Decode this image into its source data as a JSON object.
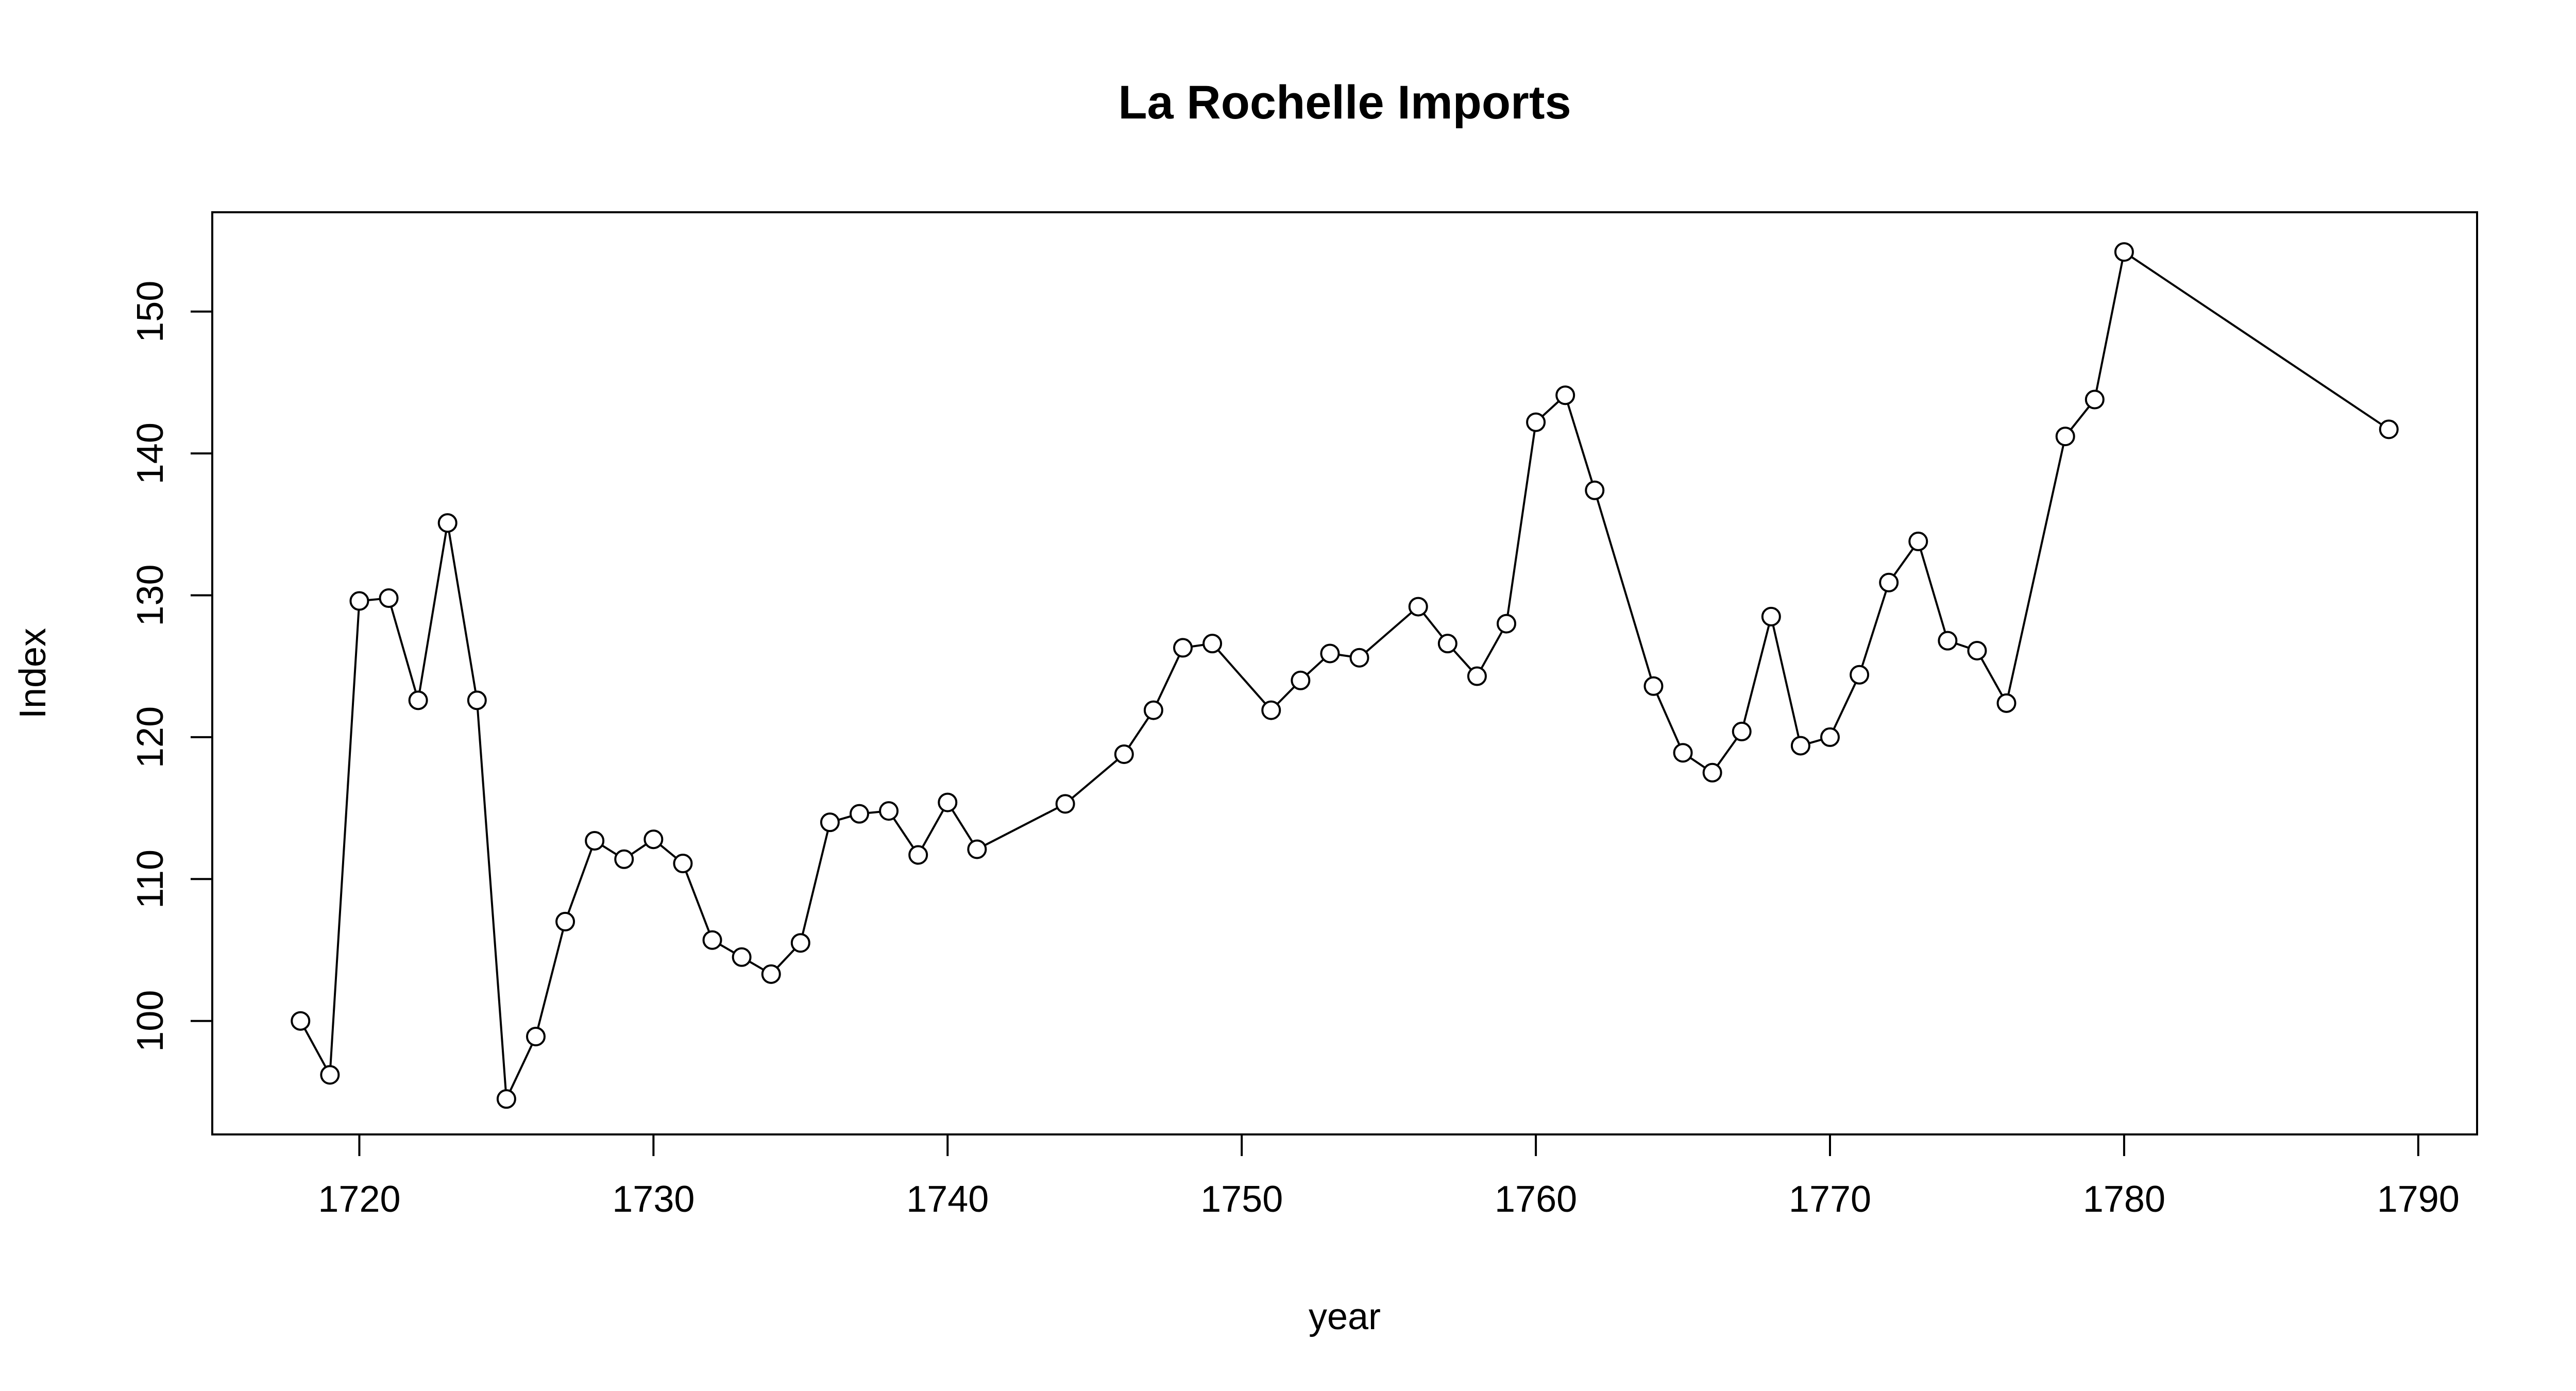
{
  "chart_data": {
    "type": "line",
    "title": "La Rochelle Imports",
    "xlabel": "year",
    "ylabel": "Index",
    "xlim": [
      1715,
      1792
    ],
    "ylim": [
      92,
      157
    ],
    "x_ticks": [
      1720,
      1730,
      1740,
      1750,
      1760,
      1770,
      1780,
      1790
    ],
    "y_ticks": [
      100,
      110,
      120,
      130,
      140,
      150
    ],
    "grid": false,
    "legend": "none",
    "marker": "open-circle",
    "color": "#000000",
    "series": [
      {
        "x": [
          1718,
          1719,
          1720,
          1721,
          1722,
          1723,
          1724,
          1725,
          1726,
          1727,
          1728,
          1729,
          1730,
          1731,
          1732,
          1733,
          1734,
          1735,
          1736,
          1737,
          1738,
          1739,
          1740,
          1741,
          1744,
          1746,
          1747,
          1748,
          1749,
          1751,
          1752,
          1753,
          1754,
          1756,
          1757,
          1758,
          1759,
          1760,
          1761,
          1762,
          1764,
          1765,
          1766,
          1767,
          1768,
          1769,
          1770,
          1771,
          1772,
          1773,
          1774,
          1775,
          1776,
          1778,
          1779,
          1780,
          1789
        ],
        "values": [
          100.0,
          96.2,
          129.6,
          129.8,
          122.6,
          135.1,
          122.6,
          94.5,
          98.9,
          107.0,
          112.7,
          111.4,
          112.8,
          111.1,
          105.7,
          104.5,
          103.3,
          105.5,
          114.0,
          114.6,
          114.8,
          111.7,
          115.4,
          112.1,
          115.3,
          118.8,
          121.9,
          126.3,
          126.6,
          121.9,
          124.0,
          125.9,
          125.6,
          129.2,
          126.6,
          124.3,
          128.0,
          142.2,
          144.1,
          137.4,
          123.6,
          118.9,
          117.5,
          120.4,
          128.5,
          119.4,
          120.0,
          124.4,
          130.9,
          133.8,
          126.8,
          126.1,
          122.4,
          141.2,
          143.8,
          154.2,
          141.7
        ]
      }
    ]
  }
}
